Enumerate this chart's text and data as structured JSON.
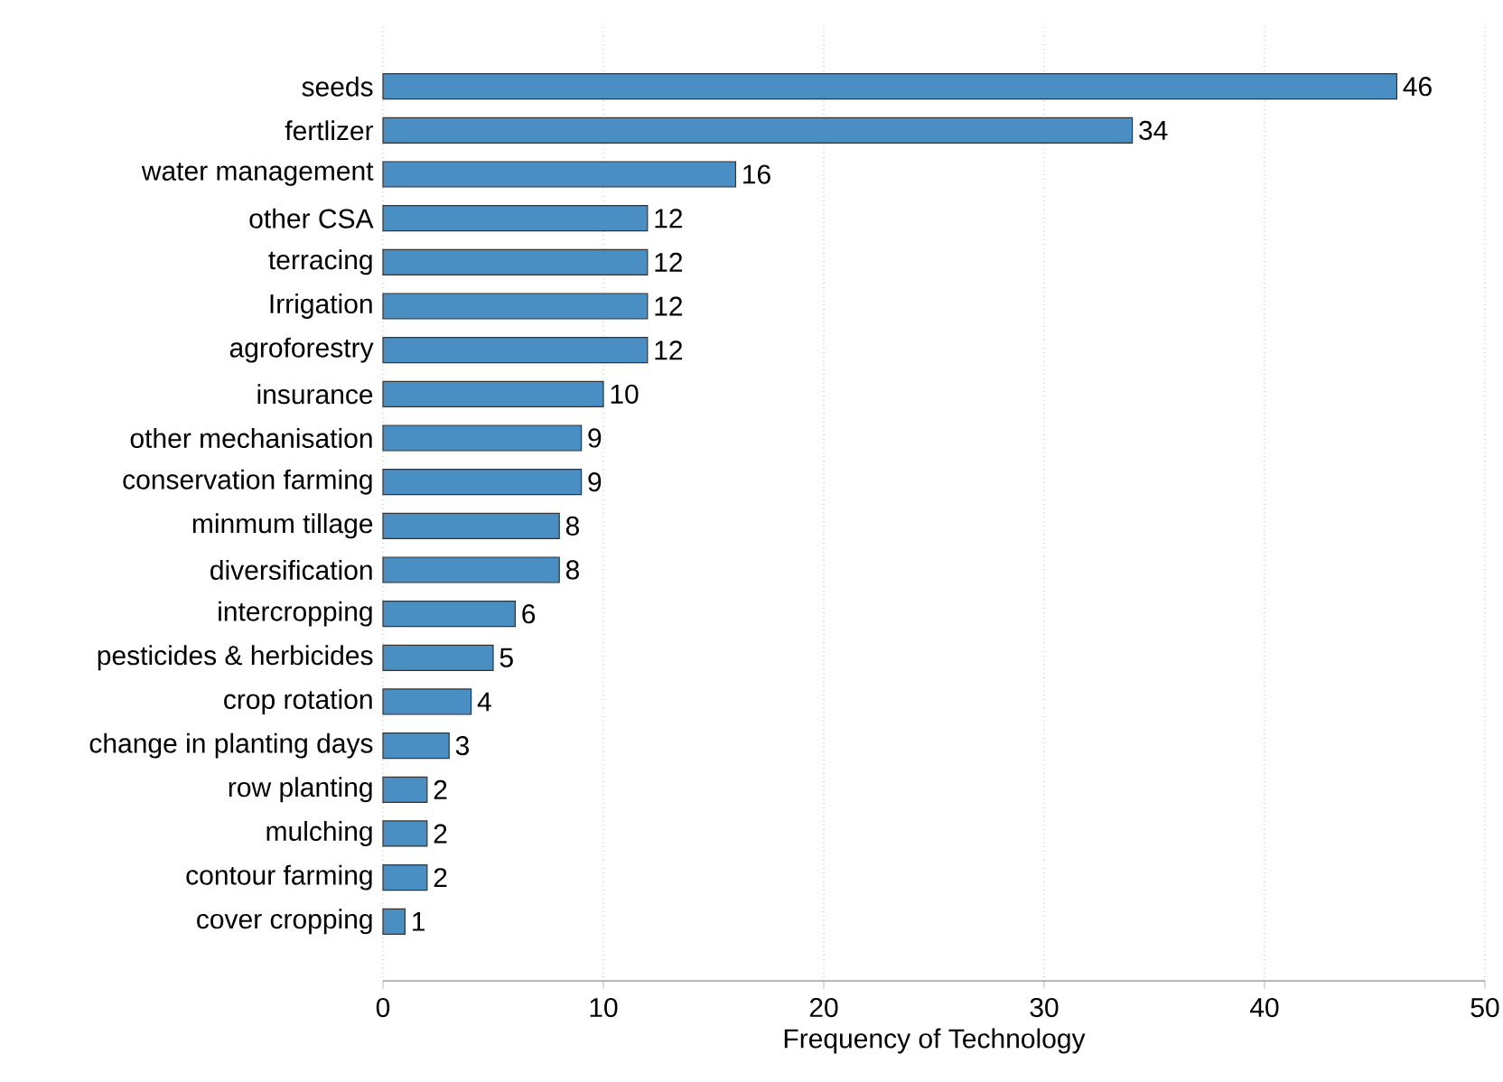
{
  "chart_data": {
    "type": "bar",
    "orientation": "horizontal",
    "xlabel": "Frequency of Technology",
    "categories": [
      "seeds",
      "fertlizer",
      "water management",
      "other CSA",
      "terracing",
      "Irrigation",
      "agroforestry",
      "insurance",
      "other mechanisation",
      "conservation farming",
      "minmum tillage",
      "diversification",
      "intercropping",
      "pesticides & herbicides",
      "crop rotation",
      "change in planting days",
      "row planting",
      "mulching",
      "contour farming",
      "cover cropping"
    ],
    "values": [
      46,
      34,
      16,
      12,
      12,
      12,
      12,
      10,
      9,
      9,
      8,
      8,
      6,
      5,
      4,
      3,
      2,
      2,
      2,
      1
    ],
    "color": "#4a8fc4",
    "xlim": [
      0,
      50
    ],
    "xticks": [
      0,
      10,
      20,
      30,
      40,
      50
    ],
    "grid": "x",
    "data_labels": true
  }
}
